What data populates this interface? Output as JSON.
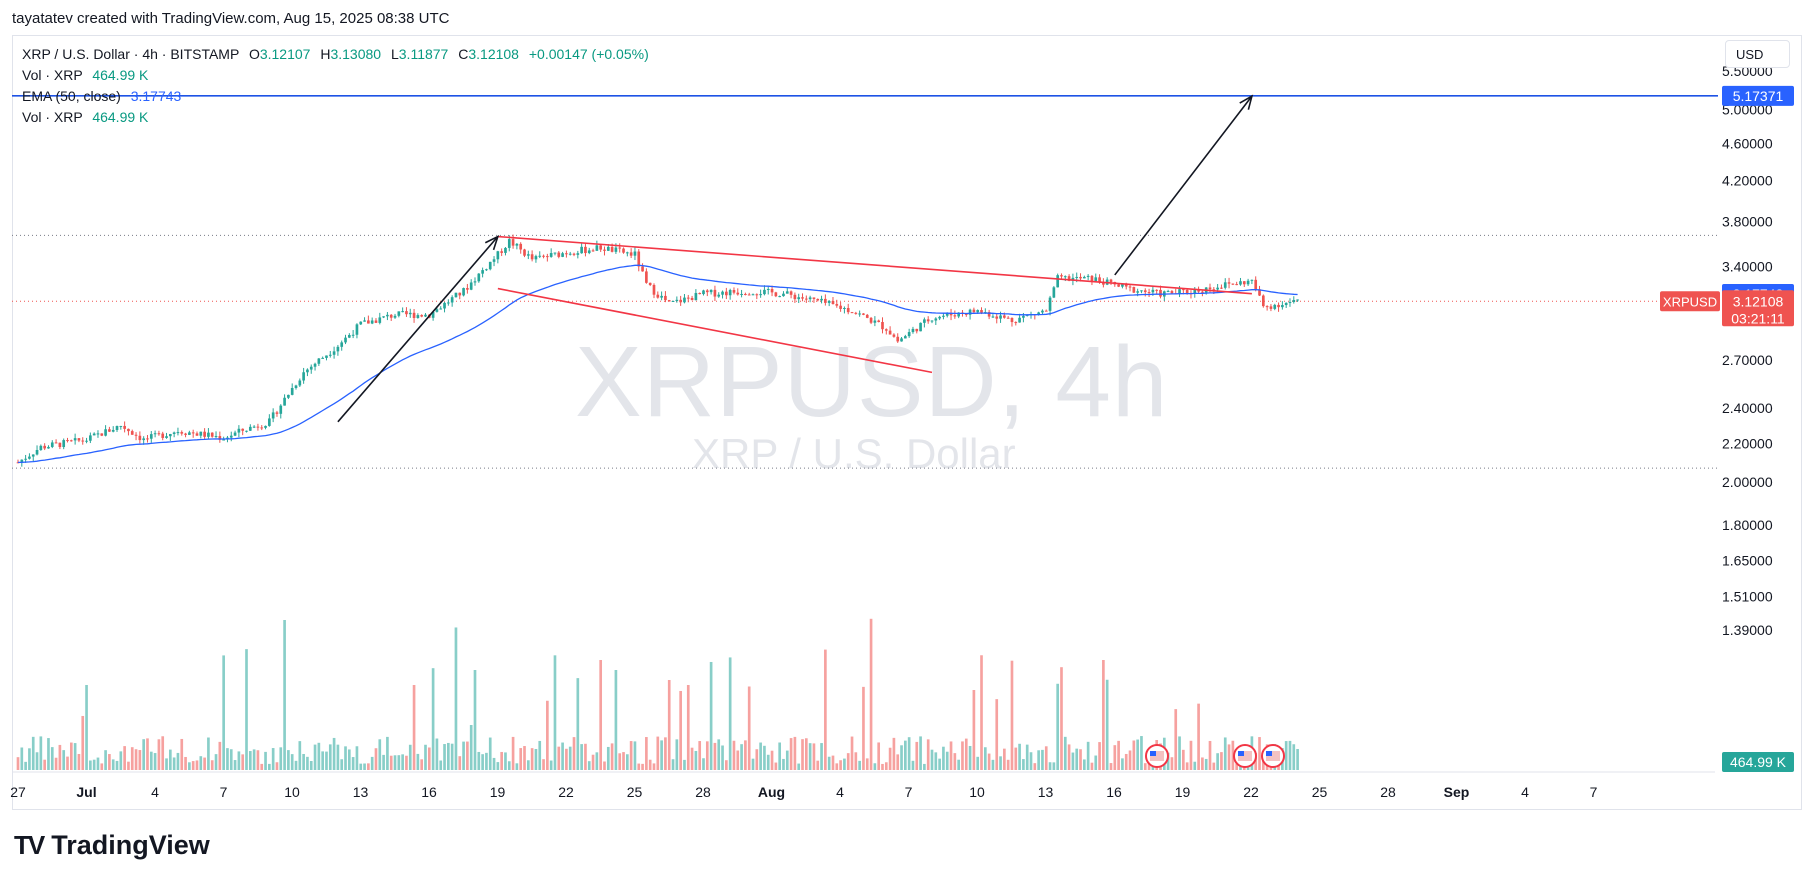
{
  "caption": "tayatatev created with TradingView.com, Aug 15, 2025 08:38 UTC",
  "legend": {
    "symbol_line": "XRP / U.S. Dollar · 4h · BITSTAMP",
    "o_label": "O",
    "o_value": "3.12107",
    "h_label": "H",
    "h_value": "3.13080",
    "l_label": "L",
    "l_value": "3.11877",
    "c_label": "C",
    "c_value": "3.12108",
    "change": "+0.00147 (+0.05%)",
    "vol_label": "Vol · XRP",
    "vol_value": "464.99 K",
    "ema_label": "EMA (50, close)",
    "ema_value": "3.17743",
    "vol2_label": "Vol · XRP",
    "vol2_value": "464.99 K"
  },
  "currency": "USD",
  "watermark": {
    "symbol": "XRPUSD, 4h",
    "description": "XRP / U.S. Dollar"
  },
  "brand": {
    "logo": "TV",
    "name": "TradingView"
  },
  "colors": {
    "up": "#26a69a",
    "down": "#ef5350",
    "ema": "#2962ff",
    "trend": "#f23645",
    "target": "#1e53e5",
    "arrow": "#131722"
  },
  "chart_data": {
    "type": "candlestick",
    "symbol": "XRPUSD",
    "timeframe": "4h",
    "exchange": "BITSTAMP",
    "price_axis": {
      "ticks": [
        "5.50000",
        "5.00000",
        "4.60000",
        "4.20000",
        "3.80000",
        "3.40000",
        "2.70000",
        "2.40000",
        "2.20000",
        "2.00000",
        "1.80000",
        "1.65000",
        "1.51000",
        "1.39000"
      ],
      "scale": "log"
    },
    "time_axis": {
      "ticks": [
        "27",
        "Jul",
        "4",
        "7",
        "10",
        "13",
        "16",
        "19",
        "22",
        "25",
        "28",
        "Aug",
        "4",
        "7",
        "10",
        "13",
        "16",
        "19",
        "22",
        "25",
        "28",
        "Sep",
        "4",
        "7"
      ],
      "bold": [
        "Jul",
        "Aug",
        "Sep"
      ]
    },
    "price_labels": [
      {
        "text": "5.17371",
        "value": 5.17371,
        "kind": "target"
      },
      {
        "text": "3.17743",
        "value": 3.17743,
        "kind": "ema"
      },
      {
        "text": "3.12108",
        "value": 3.12108,
        "kind": "last",
        "tag": "XRPUSD",
        "countdown": "03:21:11"
      },
      {
        "text": "464.99 K",
        "kind": "volume"
      }
    ],
    "horizontal_lines": [
      {
        "value": 5.17371,
        "style": "solid",
        "name": "target"
      },
      {
        "value": 3.67,
        "style": "dotted",
        "name": "high"
      },
      {
        "value": 2.07,
        "style": "dotted",
        "name": "low"
      },
      {
        "value": 3.12108,
        "style": "dotted-red",
        "name": "last"
      }
    ],
    "candles_summary": {
      "start": {
        "date": "2025-06-27",
        "price": 2.1
      },
      "swing_high": {
        "date": "2025-07-18",
        "price": 3.66
      },
      "swing_low": {
        "date": "2025-08-03",
        "price": 2.73
      },
      "last": {
        "date": "2025-08-15",
        "price": 3.12108
      }
    },
    "drawings": {
      "channel_upper": {
        "from": {
          "date": "2025-07-18",
          "price": 3.66
        },
        "to": {
          "date": "2025-08-20",
          "price": 3.18
        }
      },
      "channel_lower": {
        "from": {
          "date": "2025-07-18",
          "price": 3.22
        },
        "to": {
          "date": "2025-08-06",
          "price": 2.62
        }
      },
      "arrow_up_1": {
        "from": {
          "date": "2025-07-11",
          "price": 2.32
        },
        "to": {
          "date": "2025-07-18",
          "price": 3.66
        }
      },
      "arrow_up_2": {
        "from": {
          "date": "2025-08-14",
          "price": 3.33
        },
        "to": {
          "date": "2025-08-20",
          "price": 5.17
        }
      }
    }
  }
}
